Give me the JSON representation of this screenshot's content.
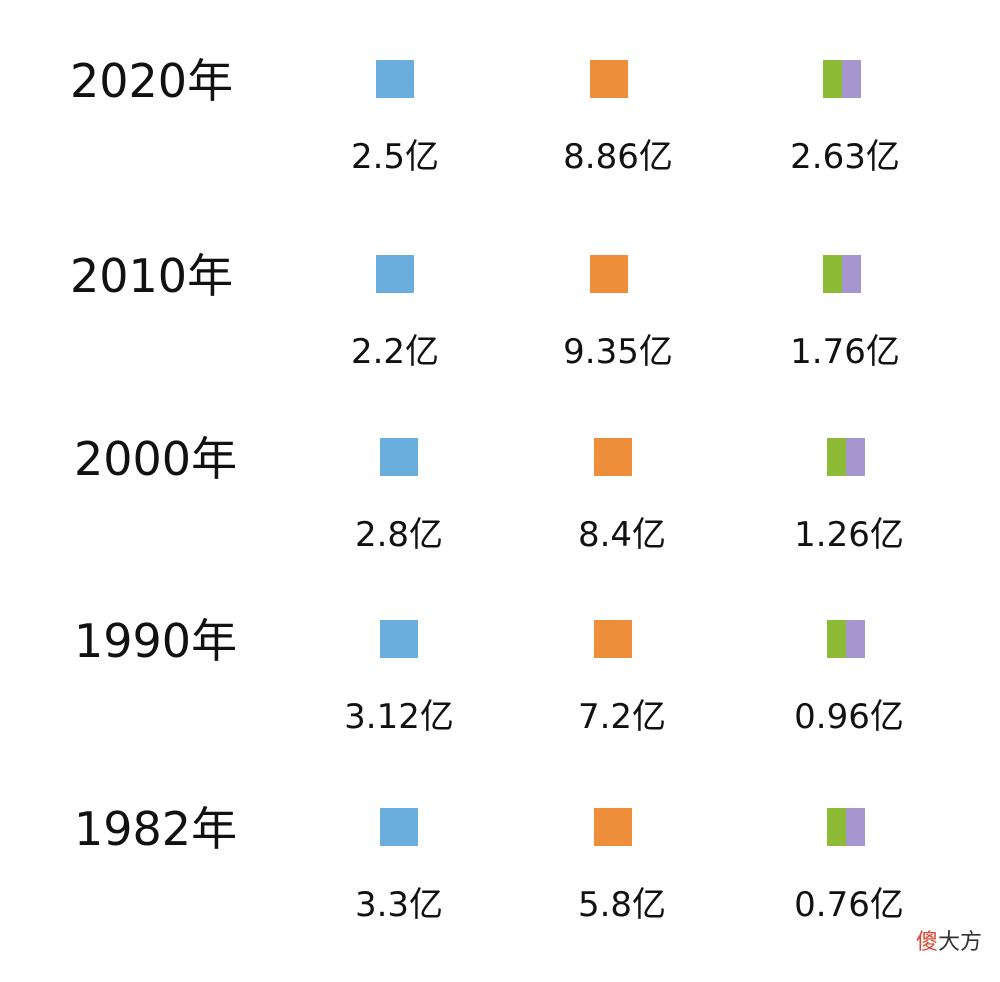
{
  "rows": [
    {
      "year": "2020年",
      "values": [
        "2.5亿",
        "8.86亿",
        "2.63亿"
      ]
    },
    {
      "year": "2010年",
      "values": [
        "2.2亿",
        "9.35亿",
        "1.76亿"
      ]
    },
    {
      "year": "2000年",
      "values": [
        "2.8亿",
        "8.4亿",
        "1.26亿"
      ]
    },
    {
      "year": "1990年",
      "values": [
        "3.12亿",
        "7.2亿",
        "0.96亿"
      ]
    },
    {
      "year": "1982年",
      "values": [
        "3.3亿",
        "5.8亿",
        "0.76亿"
      ]
    }
  ],
  "watermark": [
    "傻",
    "大方"
  ]
}
